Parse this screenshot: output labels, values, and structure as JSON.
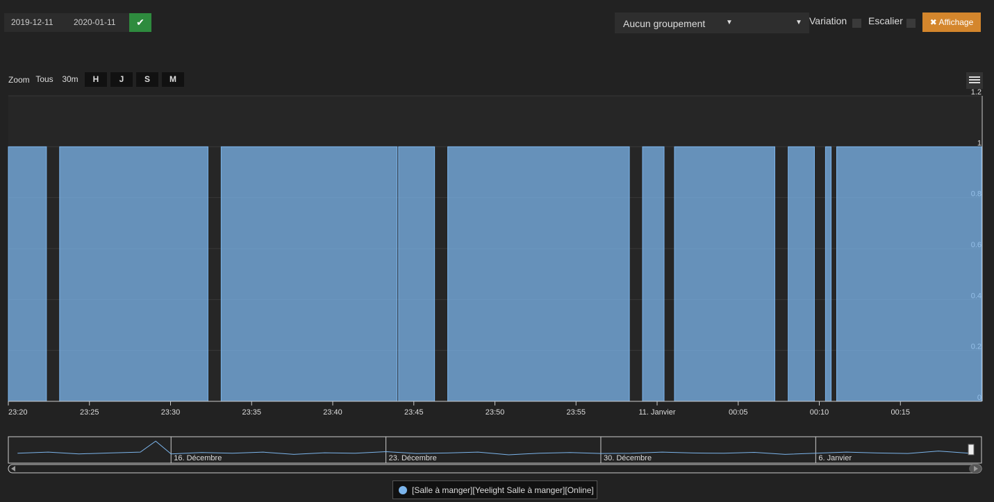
{
  "controls": {
    "date_start": "2019-12-11",
    "date_end": "2020-01-11",
    "grouping": "Aucun groupement",
    "variation": "Variation",
    "escalier": "Escalier",
    "affichage": "Affichage"
  },
  "zoom": {
    "label": "Zoom",
    "buttons": [
      "Tous",
      "30m",
      "H",
      "J",
      "S",
      "M"
    ]
  },
  "chart_data": {
    "type": "step-area",
    "series": [
      {
        "name": "[Salle à manger][Yeelight Salle à manger][Online]",
        "color": "#7cb5ec",
        "x": [
          0,
          2.35,
          3.16,
          12.31,
          13.12,
          23.97,
          24.06,
          26.28,
          27.09,
          38.29,
          39.1,
          40.43,
          41.07,
          47.26,
          48.08,
          49.7,
          50.38,
          50.73,
          51.07,
          60
        ],
        "values": [
          1,
          0,
          1,
          0,
          1,
          0,
          1,
          0,
          1,
          0,
          1,
          0,
          1,
          0,
          1,
          0,
          1,
          0,
          1,
          1
        ]
      }
    ],
    "xlim": [
      0,
      60
    ],
    "xticks": [
      {
        "value": 0,
        "label": "23:20"
      },
      {
        "value": 5,
        "label": "23:25"
      },
      {
        "value": 10,
        "label": "23:30"
      },
      {
        "value": 15,
        "label": "23:35"
      },
      {
        "value": 20,
        "label": "23:40"
      },
      {
        "value": 25,
        "label": "23:45"
      },
      {
        "value": 30,
        "label": "23:50"
      },
      {
        "value": 35,
        "label": "23:55"
      },
      {
        "value": 40,
        "label": "11. Janvier"
      },
      {
        "value": 45,
        "label": "00:05"
      },
      {
        "value": 50,
        "label": "00:10"
      },
      {
        "value": 55,
        "label": "00:15"
      }
    ],
    "ylim": [
      0,
      1.2
    ],
    "yticks": [
      0,
      0.2,
      0.4,
      0.6,
      0.8,
      1,
      1.2
    ],
    "grid": true,
    "navigator": {
      "xlim": [
        -0.3,
        31.4
      ],
      "ylim": [
        0,
        1.2
      ],
      "xticks": [
        {
          "value": 5,
          "label": "16. Décembre"
        },
        {
          "value": 12,
          "label": "23. Décembre"
        },
        {
          "value": 19,
          "label": "30. Décembre"
        },
        {
          "value": 26,
          "label": "6. Janvier"
        }
      ],
      "x": [
        0,
        1,
        2,
        3,
        4,
        4.5,
        5,
        6,
        7,
        8,
        9,
        10,
        11,
        12,
        13,
        14,
        15,
        16,
        17,
        18,
        19,
        20,
        21,
        22,
        23,
        24,
        25,
        26,
        27,
        28,
        29,
        30,
        31
      ],
      "values": [
        0.45,
        0.5,
        0.42,
        0.46,
        0.5,
        1.0,
        0.42,
        0.48,
        0.45,
        0.5,
        0.4,
        0.47,
        0.45,
        0.52,
        0.44,
        0.46,
        0.5,
        0.38,
        0.45,
        0.48,
        0.44,
        0.45,
        0.5,
        0.46,
        0.45,
        0.49,
        0.4,
        0.45,
        0.5,
        0.46,
        0.44,
        0.55,
        0.45
      ]
    }
  }
}
